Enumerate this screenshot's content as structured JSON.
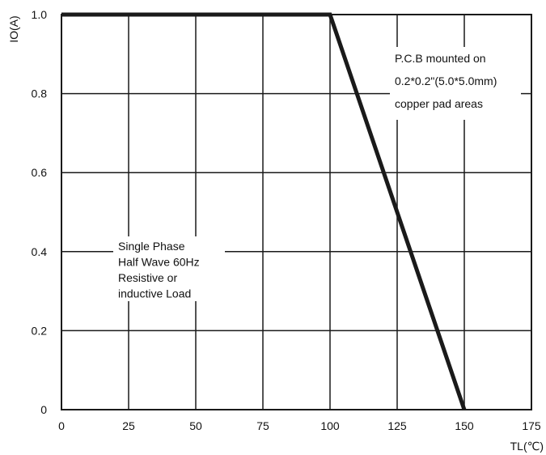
{
  "chart_data": {
    "type": "line",
    "x": [
      0,
      100,
      150
    ],
    "series": [
      {
        "values": [
          1.0,
          1.0,
          0
        ],
        "color": "#1a1a1a"
      }
    ],
    "xlabel": "TL(℃)",
    "ylabel": "IO(A)",
    "xlim": [
      0,
      175
    ],
    "ylim": [
      0,
      1.0
    ],
    "x_ticks": [
      0,
      25,
      50,
      75,
      100,
      125,
      150,
      175
    ],
    "y_ticks": [
      0,
      0.2,
      0.4,
      0.6,
      0.8,
      1.0
    ],
    "x_tick_labels": [
      "0",
      "25",
      "50",
      "75",
      "100",
      "125",
      "150",
      "175"
    ],
    "y_tick_labels": [
      "0",
      "0.2",
      "0.4",
      "0.6",
      "0.8",
      "1.0"
    ],
    "grid": true,
    "annotations": {
      "pcb": [
        "P.C.B mounted on",
        "0.2*0.2\"(5.0*5.0mm)",
        "copper pad areas"
      ],
      "conditions": [
        "Single Phase",
        "Half Wave 60Hz",
        "Resistive or",
        "inductive Load"
      ]
    }
  }
}
